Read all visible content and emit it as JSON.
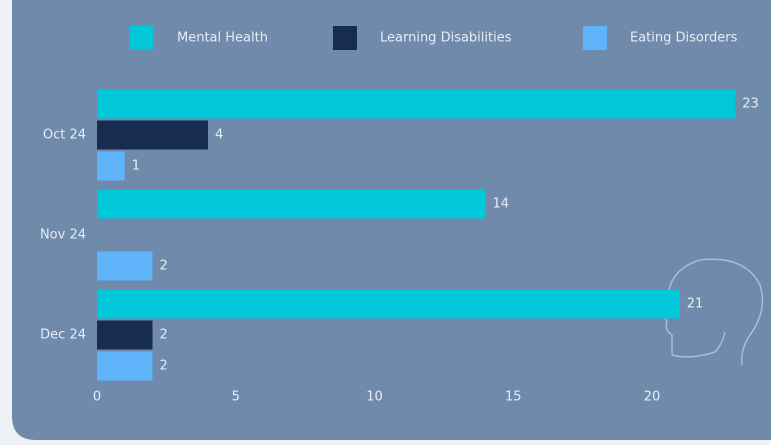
{
  "chart_data": {
    "type": "bar",
    "orientation": "horizontal",
    "categories": [
      "Oct 24",
      "Nov 24",
      "Dec 24"
    ],
    "series": [
      {
        "name": "Mental Health",
        "color": "#00c8da",
        "values": [
          23,
          14,
          21
        ]
      },
      {
        "name": "Learning Disabilities",
        "color": "#182c52",
        "values": [
          4,
          null,
          2
        ]
      },
      {
        "name": "Eating Disorders",
        "color": "#5fb3f9",
        "values": [
          1,
          2,
          2
        ]
      }
    ],
    "xlim": [
      0,
      24
    ],
    "xticks": [
      0,
      5,
      10,
      15,
      20
    ],
    "legend": "top"
  }
}
